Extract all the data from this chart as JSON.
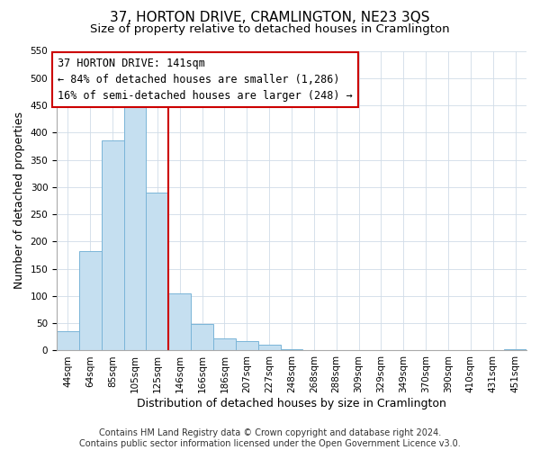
{
  "title": "37, HORTON DRIVE, CRAMLINGTON, NE23 3QS",
  "subtitle": "Size of property relative to detached houses in Cramlington",
  "xlabel": "Distribution of detached houses by size in Cramlington",
  "ylabel": "Number of detached properties",
  "footer_line1": "Contains HM Land Registry data © Crown copyright and database right 2024.",
  "footer_line2": "Contains public sector information licensed under the Open Government Licence v3.0.",
  "bin_labels": [
    "44sqm",
    "64sqm",
    "85sqm",
    "105sqm",
    "125sqm",
    "146sqm",
    "166sqm",
    "186sqm",
    "207sqm",
    "227sqm",
    "248sqm",
    "268sqm",
    "288sqm",
    "309sqm",
    "329sqm",
    "349sqm",
    "370sqm",
    "390sqm",
    "410sqm",
    "431sqm",
    "451sqm"
  ],
  "bar_heights": [
    35,
    182,
    385,
    455,
    290,
    105,
    48,
    22,
    18,
    10,
    3,
    1,
    0,
    0,
    0,
    0,
    0,
    0,
    0,
    0,
    2
  ],
  "bar_color": "#c5dff0",
  "bar_edge_color": "#7ab5d8",
  "vline_x": 5.0,
  "vline_color": "#cc0000",
  "annotation_line1": "37 HORTON DRIVE: 141sqm",
  "annotation_line2": "← 84% of detached houses are smaller (1,286)",
  "annotation_line3": "16% of semi-detached houses are larger (248) →",
  "annotation_box_color": "#ffffff",
  "annotation_box_edgecolor": "#cc0000",
  "ylim_max": 550,
  "yticks": [
    0,
    50,
    100,
    150,
    200,
    250,
    300,
    350,
    400,
    450,
    500,
    550
  ],
  "grid_color": "#d0dce8",
  "background_color": "#ffffff",
  "title_fontsize": 11,
  "subtitle_fontsize": 9.5,
  "axis_label_fontsize": 9,
  "tick_fontsize": 7.5,
  "annotation_fontsize": 8.5,
  "footer_fontsize": 7
}
